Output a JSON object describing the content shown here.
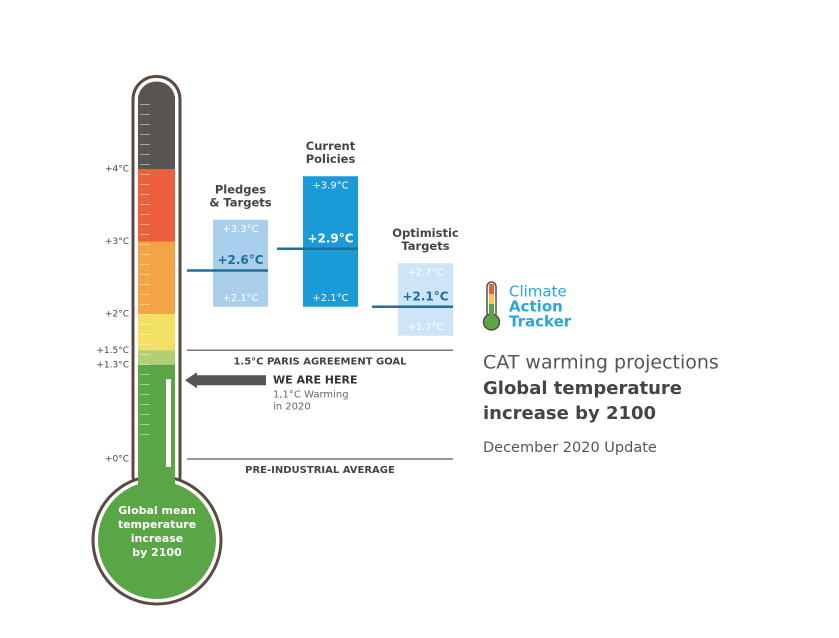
{
  "chart_data": {
    "type": "range",
    "title": [
      "CAT warming projections",
      "Global temperature",
      "increase by 2100"
    ],
    "subtitle": "December 2020 Update",
    "logo": [
      "Climate",
      "Action",
      "Tracker"
    ],
    "bulb_text": [
      "Global mean",
      "temperature",
      "increase",
      "by 2100"
    ],
    "ylim": [
      0,
      5
    ],
    "yticks": [
      {
        "value": 0,
        "label": "+0°C"
      },
      {
        "value": 1.3,
        "label": "+1.3°C"
      },
      {
        "value": 1.5,
        "label": "+1.5°C"
      },
      {
        "value": 2,
        "label": "+2°C"
      },
      {
        "value": 3,
        "label": "+3°C"
      },
      {
        "value": 4,
        "label": "+4°C"
      }
    ],
    "bands": [
      {
        "from": 4,
        "to": 5,
        "color": "#585452"
      },
      {
        "from": 3,
        "to": 4,
        "color": "#ec5f3c"
      },
      {
        "from": 2,
        "to": 3,
        "color": "#f3a445"
      },
      {
        "from": 1.5,
        "to": 2,
        "color": "#f2e065"
      },
      {
        "from": 1.3,
        "to": 1.5,
        "color": "#b2cf74"
      },
      {
        "from": 0,
        "to": 1.3,
        "color": "#5aa546"
      }
    ],
    "categories": [
      [
        "Pledges",
        "& Targets"
      ],
      [
        "Current",
        "Policies"
      ],
      [
        "Optimistic",
        "Targets"
      ]
    ],
    "colors": [
      "#a9cfec",
      "#1a9ad6",
      "#cde5f6"
    ],
    "mid_color": "#1f6f9c",
    "low": [
      2.1,
      2.1,
      1.7
    ],
    "low_labels": [
      "+2.1°C",
      "+2.1°C",
      "+1.7°C"
    ],
    "mid": [
      2.6,
      2.9,
      2.1
    ],
    "mid_labels": [
      "+2.6°C",
      "+2.9°C",
      "+2.1°C"
    ],
    "high": [
      3.3,
      3.9,
      2.7
    ],
    "high_labels": [
      "+3.3°C",
      "+3.9°C",
      "+2.7°C"
    ],
    "reference_lines": [
      {
        "value": 1.5,
        "label": "1.5°C PARIS AGREEMENT GOAL"
      },
      {
        "value": 0,
        "label": "PRE-INDUSTRIAL AVERAGE"
      }
    ],
    "current": {
      "value": 1.1,
      "label": "WE ARE HERE",
      "note": [
        "1,1°C Warming",
        "in 2020"
      ]
    }
  }
}
